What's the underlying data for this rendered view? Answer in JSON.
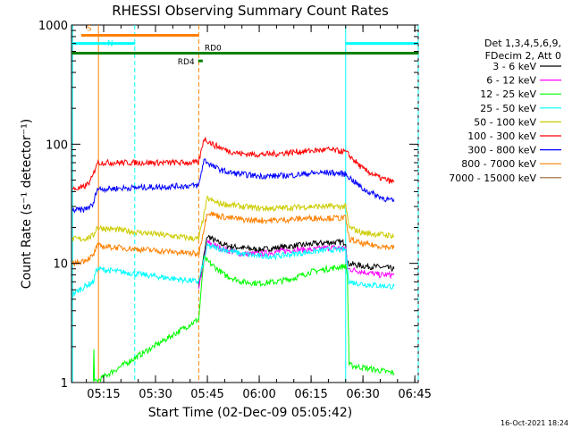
{
  "chart_data": {
    "type": "line",
    "title": "RHESSI Observing Summary Count Rates",
    "xlabel": "Start Time (02-Dec-09 05:05:42)",
    "ylabel": "Count Rate (s⁻¹ detector⁻¹)",
    "y_scale": "log",
    "ylim": [
      1,
      1000
    ],
    "xlim": [
      "05:05:42",
      "06:46:00"
    ],
    "x_ticks": [
      "05:15",
      "05:30",
      "05:45",
      "06:00",
      "06:15",
      "06:30",
      "06:45"
    ],
    "y_ticks": [
      "1",
      "10",
      "100",
      "1000"
    ],
    "grid": false,
    "legend": {
      "placement": "right",
      "header": [
        "Det 1,3,4,5,6,9,",
        "FDecim 2, Att 0"
      ],
      "entries": [
        "3 - 6 keV",
        "6 - 12 keV",
        "12 - 25 keV",
        "25 - 50 keV",
        "50 - 100 keV",
        "100 - 300 keV",
        "300 - 800 keV",
        "800 - 7000 keV",
        "7000 - 15000 keV"
      ]
    },
    "series": [
      {
        "name": "3 - 6 keV",
        "color": "#000000",
        "x": [
          "05:42:30",
          "05:45",
          "05:48",
          "05:51",
          "05:55",
          "06:00",
          "06:05",
          "06:10",
          "06:15",
          "06:20",
          "06:25",
          "06:25:30",
          "06:30",
          "06:35",
          "06:39"
        ],
        "values": [
          6.5,
          17,
          15,
          14,
          13.5,
          13,
          13.5,
          14,
          14.5,
          15,
          15,
          10,
          9.5,
          9.3,
          9
        ]
      },
      {
        "name": "6 - 12 keV",
        "color": "#ff00ff",
        "x": [
          "05:42:30",
          "05:45",
          "05:50",
          "05:55",
          "06:00",
          "06:05",
          "06:10",
          "06:15",
          "06:20",
          "06:25",
          "06:25:30",
          "06:30",
          "06:35",
          "06:39"
        ],
        "values": [
          6,
          15,
          13,
          12,
          12,
          12.5,
          13,
          13,
          13.5,
          13.5,
          9,
          8.5,
          8,
          8
        ]
      },
      {
        "name": "12 - 25 keV",
        "color": "#00ff00",
        "x": [
          "05:12:00",
          "05:12:10",
          "05:12:20",
          "05:42:30",
          "05:44",
          "05:50",
          "05:55",
          "06:00",
          "06:05",
          "06:10",
          "06:15",
          "06:20",
          "06:25",
          "06:25:30",
          "06:26",
          "06:39"
        ],
        "values": [
          1,
          2,
          1,
          3.4,
          11,
          8,
          7,
          6.8,
          7,
          7.5,
          8.5,
          9,
          9.5,
          8,
          1.4,
          1.2
        ]
      },
      {
        "name": "25 - 50 keV",
        "color": "#00ffff",
        "x": [
          "05:06",
          "05:08",
          "05:10",
          "05:12",
          "05:13",
          "05:42:30",
          "05:45",
          "05:50",
          "05:55",
          "06:00",
          "06:05",
          "06:10",
          "06:15",
          "06:20",
          "06:25",
          "06:26",
          "06:30",
          "06:35",
          "06:39"
        ],
        "values": [
          5.5,
          6,
          6.5,
          7,
          9,
          7,
          14,
          13,
          12,
          11.5,
          11.5,
          12,
          12.5,
          13,
          13,
          7,
          6.7,
          6.5,
          6.4
        ]
      },
      {
        "name": "50 - 100 keV",
        "color": "#cccc00",
        "x": [
          "05:06",
          "05:09",
          "05:12",
          "05:13",
          "05:42:30",
          "05:45",
          "05:48",
          "05:55",
          "06:00",
          "06:05",
          "06:10",
          "06:15",
          "06:20",
          "06:25",
          "06:26",
          "06:30",
          "06:35",
          "06:39"
        ],
        "values": [
          16,
          16,
          17,
          20,
          16,
          35,
          32,
          30,
          29,
          29,
          29.5,
          30,
          30,
          30,
          20,
          18,
          17.5,
          17
        ]
      },
      {
        "name": "100 - 300 keV",
        "color": "#ff0000",
        "x": [
          "05:06",
          "05:09",
          "05:11",
          "05:12",
          "05:13",
          "05:42:30",
          "05:44",
          "05:47",
          "05:51",
          "05:55",
          "06:00",
          "06:05",
          "06:10",
          "06:15",
          "06:20",
          "06:25",
          "06:30",
          "06:35",
          "06:39"
        ],
        "values": [
          42,
          43,
          48,
          55,
          70,
          70,
          112,
          98,
          88,
          83,
          82,
          83,
          86,
          88,
          90,
          86,
          62,
          52,
          48
        ]
      },
      {
        "name": "300 - 800 keV",
        "color": "#0000ff",
        "x": [
          "05:06",
          "05:09",
          "05:12",
          "05:13",
          "05:42:30",
          "05:44",
          "05:47",
          "05:51",
          "05:55",
          "06:00",
          "06:05",
          "06:10",
          "06:15",
          "06:20",
          "06:25",
          "06:30",
          "06:35",
          "06:39"
        ],
        "values": [
          28,
          28,
          31,
          42,
          45,
          74,
          64,
          58,
          56,
          54,
          54,
          55,
          57,
          58,
          56,
          42,
          36,
          33
        ]
      },
      {
        "name": "800 - 7000 keV",
        "color": "#ff8000",
        "x": [
          "05:06",
          "05:09",
          "05:12",
          "05:13",
          "05:42:30",
          "05:45",
          "05:48",
          "05:52",
          "05:57",
          "06:00",
          "06:05",
          "06:10",
          "06:15",
          "06:20",
          "06:25",
          "06:26",
          "06:30",
          "06:35",
          "06:39"
        ],
        "values": [
          10,
          10.5,
          11.5,
          14,
          12,
          27,
          25,
          24,
          23,
          23,
          23,
          23.5,
          24,
          24,
          24,
          16,
          14.5,
          14,
          13.5
        ]
      },
      {
        "name": "7000 - 15000 keV",
        "color": "#996633",
        "x": [],
        "values": []
      }
    ],
    "state_bars": [
      {
        "label": "S",
        "color": "#ff8000",
        "x": [
          "05:08:30",
          "05:42:30"
        ],
        "y": 820
      },
      {
        "label": "N",
        "color": "#00ffff",
        "x": [
          "05:05:42",
          "05:24:00"
        ],
        "y": 700
      },
      {
        "label": "",
        "color": "#00ffff",
        "x": [
          "06:25:00",
          "06:46:00"
        ],
        "y": 700
      },
      {
        "label": "RD0",
        "color": "#008000",
        "x": [
          "05:05:42",
          "06:46:00"
        ],
        "y": 580
      },
      {
        "label": "RD4",
        "color": "#008000",
        "x": [
          "05:42:20",
          "05:43:40"
        ],
        "y": 500
      }
    ],
    "time_markers": [
      {
        "time": "05:13:30",
        "color": "#ff8000",
        "style": "solid"
      },
      {
        "time": "05:24:00",
        "color": "#00ffff",
        "style": "dashed"
      },
      {
        "time": "05:42:30",
        "color": "#ff8000",
        "style": "dashed"
      },
      {
        "time": "06:25:00",
        "color": "#00ffff",
        "style": "solid"
      },
      {
        "time": "06:46:00",
        "color": "#00ffff",
        "style": "dashed"
      },
      {
        "time": "05:06:00",
        "color": "#00ffff",
        "style": "solid"
      }
    ]
  },
  "footer": {
    "timestamp": "16-Oct-2021 18:24"
  }
}
